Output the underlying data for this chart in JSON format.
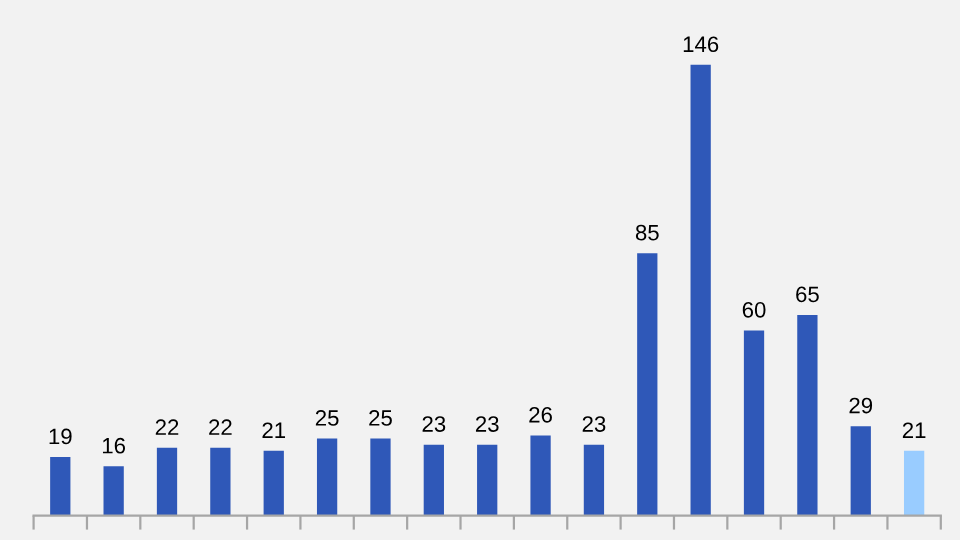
{
  "chart_data": {
    "type": "bar",
    "categories": [
      null,
      null,
      null,
      null,
      null,
      null,
      null,
      null,
      null,
      null,
      null,
      null,
      null,
      null,
      null,
      null,
      null
    ],
    "values": [
      19,
      16,
      22,
      22,
      21,
      25,
      25,
      23,
      23,
      26,
      23,
      85,
      146,
      60,
      65,
      29,
      21
    ],
    "colors": [
      "#2f58b8",
      "#2f58b8",
      "#2f58b8",
      "#2f58b8",
      "#2f58b8",
      "#2f58b8",
      "#2f58b8",
      "#2f58b8",
      "#2f58b8",
      "#2f58b8",
      "#2f58b8",
      "#2f58b8",
      "#2f58b8",
      "#2f58b8",
      "#2f58b8",
      "#2f58b8",
      "#99ccff"
    ],
    "ylim": [
      0,
      167
    ],
    "data_labels": true,
    "grid": false,
    "legend": false
  }
}
